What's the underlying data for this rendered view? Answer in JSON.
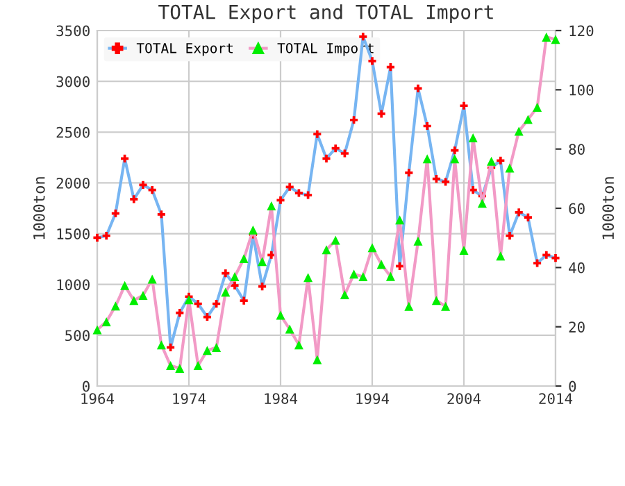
{
  "chart_data": {
    "type": "line",
    "title": "TOTAL Export and TOTAL Import",
    "ylabel": "1000ton",
    "y2label": "1000ton",
    "x": [
      1964,
      1965,
      1966,
      1967,
      1968,
      1969,
      1970,
      1971,
      1972,
      1973,
      1974,
      1975,
      1976,
      1977,
      1978,
      1979,
      1980,
      1981,
      1982,
      1983,
      1984,
      1985,
      1986,
      1987,
      1988,
      1989,
      1990,
      1991,
      1992,
      1993,
      1994,
      1995,
      1996,
      1997,
      1998,
      1999,
      2000,
      2001,
      2002,
      2003,
      2004,
      2005,
      2006,
      2007,
      2008,
      2009,
      2010,
      2011,
      2012,
      2013,
      2014
    ],
    "series": [
      {
        "name": "TOTAL Export",
        "color": "#77b5f2",
        "colors": [
          "#ff0000",
          "#ff0000",
          "#ff0000",
          "#ff0000",
          "#ff0000",
          "#ff0000",
          "#ff0000",
          "#ff0000",
          "#ff0000",
          "#ff0000",
          "#ff0000",
          "#ff0000",
          "#ff0000",
          "#ff0000",
          "#ff0000",
          "#ff0000",
          "#ff0000",
          "#ff0000",
          "#ff0000",
          "#ff0000",
          "#ff0000",
          "#ff0000",
          "#ff0000",
          "#ff0000",
          "#ff0000",
          "#ff0000",
          "#ff0000",
          "#ff0000",
          "#ff0000",
          "#ff0000",
          "#ff0000",
          "#ff0000",
          "#ff0000",
          "#ff0000",
          "#ff0000",
          "#ff0000",
          "#ff0000",
          "#ff0000",
          "#ff0000",
          "#ff0000",
          "#ff0000",
          "#ff0000",
          "#ff0000",
          "#ff0000",
          "#ff0000",
          "#ff0000",
          "#ff0000",
          "#ff0000",
          "#ff0000",
          "#ff0000",
          "#ff0000"
        ],
        "marker": "cross",
        "values": [
          1460,
          1480,
          1700,
          2240,
          1840,
          1980,
          1930,
          1690,
          380,
          720,
          880,
          810,
          680,
          810,
          1110,
          990,
          840,
          1490,
          980,
          1290,
          1830,
          1960,
          1900,
          1880,
          2480,
          2240,
          2340,
          2290,
          2620,
          3440,
          3200,
          2680,
          3140,
          1180,
          2100,
          2930,
          2560,
          2040,
          2010,
          2320,
          2760,
          1930,
          1870,
          2150,
          2220,
          1480,
          1710,
          1660,
          1210,
          1290,
          1260
        ]
      },
      {
        "name": "TOTAL Import",
        "color": "#f29ac6",
        "colors": [
          "#00ee00",
          "#00ee00",
          "#00ee00",
          "#00ee00",
          "#00ee00",
          "#00ee00",
          "#00ee00",
          "#00ee00",
          "#00ee00",
          "#00ee00",
          "#00ee00",
          "#00ee00",
          "#00ee00",
          "#00ee00",
          "#00ee00",
          "#00ee00",
          "#00ee00",
          "#00ee00",
          "#00ee00",
          "#00ee00",
          "#00ee00",
          "#00ee00",
          "#00ee00",
          "#00ee00",
          "#00ee00",
          "#00ee00",
          "#00ee00",
          "#00ee00",
          "#00ee00",
          "#00ee00",
          "#00ee00",
          "#00ee00",
          "#00ee00",
          "#00ee00",
          "#00ee00",
          "#00ee00",
          "#00ee00",
          "#00ee00",
          "#00ee00",
          "#00ee00",
          "#00ee00",
          "#00ee00",
          "#00ee00",
          "#00ee00",
          "#00ee00",
          "#00ee00",
          "#00ee00",
          "#00ee00",
          "#00ee00",
          "#00ee00",
          "#00ee00"
        ],
        "marker": "triangle",
        "axis": "y2",
        "values": [
          19,
          21.7,
          27,
          33.9,
          28.9,
          30.6,
          36.1,
          13.9,
          6.9,
          6,
          29.1,
          6.9,
          12,
          13,
          31.7,
          36.9,
          43,
          52.7,
          42,
          60.8,
          23.9,
          19.2,
          13.9,
          36.6,
          8.9,
          46,
          49.2,
          30.8,
          37.8,
          36.9,
          46.7,
          41.1,
          37,
          56.1,
          26.9,
          48.9,
          76.7,
          28.9,
          26.9,
          76.7,
          45.8,
          83.8,
          61.7,
          75.9,
          43.9,
          73.6,
          86,
          90,
          94.1,
          117.8,
          117
        ]
      }
    ],
    "xlim": [
      1964,
      2014
    ],
    "xticks": [
      1964,
      1974,
      1984,
      1994,
      2004,
      2014
    ],
    "ylim": [
      0,
      3500
    ],
    "yticks": [
      0,
      500,
      1000,
      1500,
      2000,
      2500,
      3000,
      3500
    ],
    "y2lim": [
      0,
      120
    ],
    "y2ticks": [
      0,
      20,
      40,
      60,
      80,
      100,
      120
    ],
    "grid": true,
    "legend": "top left"
  }
}
